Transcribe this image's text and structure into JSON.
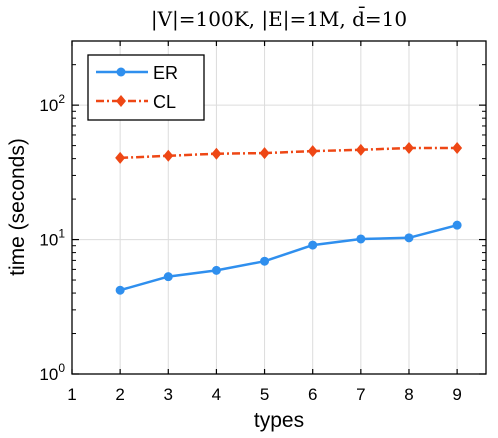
{
  "chart_data": {
    "type": "line",
    "title": "|V|=100K, |E|=1M, d̄=10",
    "xlabel": "types",
    "ylabel": "time (seconds)",
    "x_ticks": [
      1,
      2,
      3,
      4,
      5,
      6,
      7,
      8,
      9
    ],
    "xlim": [
      1,
      9.6
    ],
    "y_scale": "log",
    "ylim": [
      1,
      300
    ],
    "y_ticks": [
      {
        "base": "10",
        "exp": "0",
        "value": 1
      },
      {
        "base": "10",
        "exp": "1",
        "value": 10
      },
      {
        "base": "10",
        "exp": "2",
        "value": 100
      }
    ],
    "grid": true,
    "legend_position": "top-left",
    "x": [
      2,
      3,
      4,
      5,
      6,
      7,
      8,
      9
    ],
    "series": [
      {
        "name": "ER",
        "color": "#2f8fee",
        "line_style": "solid",
        "marker": "circle",
        "values": [
          4.2,
          5.3,
          5.9,
          6.9,
          9.1,
          10.1,
          10.3,
          12.8
        ]
      },
      {
        "name": "CL",
        "color": "#ee4715",
        "line_style": "dash-dot",
        "marker": "diamond",
        "values": [
          40.5,
          42.0,
          43.5,
          44.0,
          45.5,
          46.5,
          48.0,
          48.0
        ]
      }
    ]
  }
}
